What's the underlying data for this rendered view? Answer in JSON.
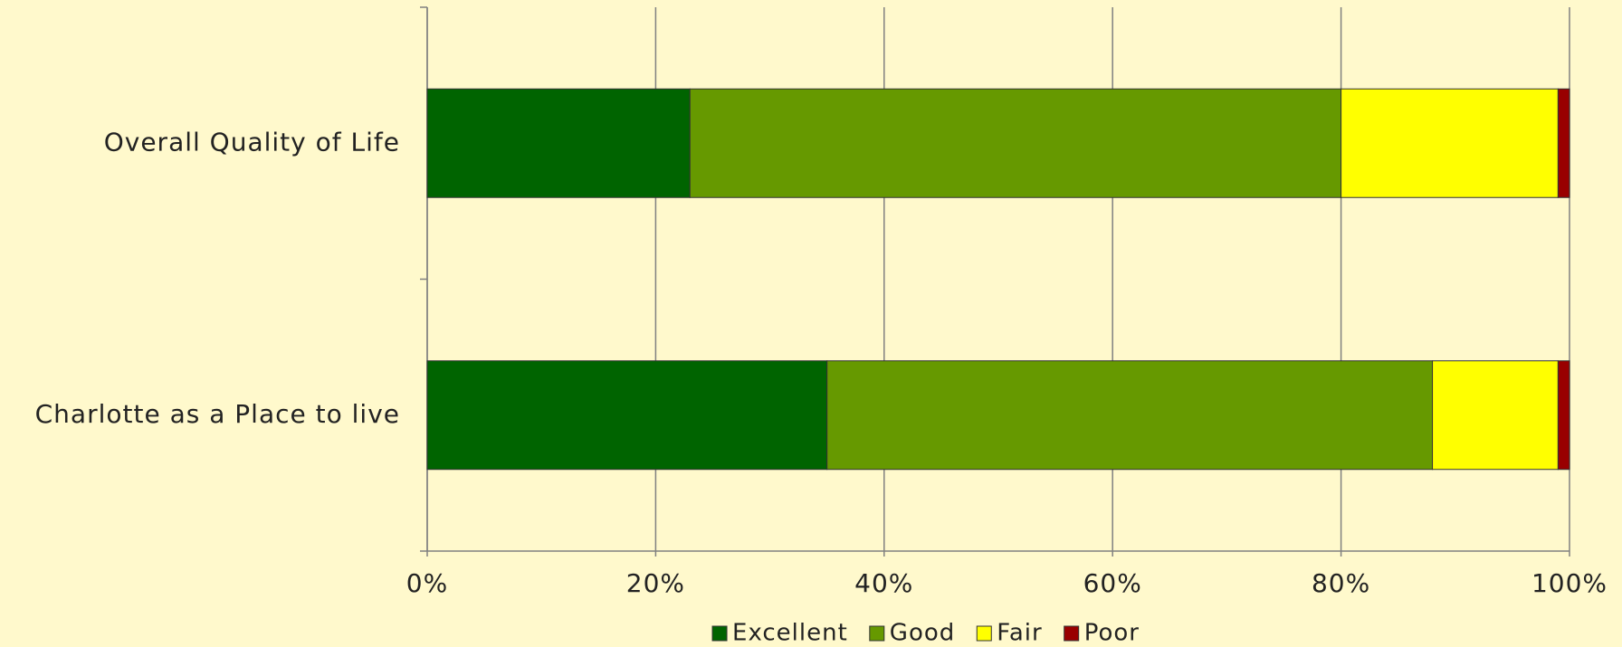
{
  "chart_data": {
    "type": "stacked_barh",
    "categories": [
      "Overall Quality of Life",
      "Charlotte as a Place to live"
    ],
    "series": [
      {
        "name": "Excellent",
        "color": "#006400",
        "values": [
          23,
          35
        ]
      },
      {
        "name": "Good",
        "color": "#669900",
        "values": [
          57,
          53
        ]
      },
      {
        "name": "Fair",
        "color": "#ffff00",
        "values": [
          19,
          11
        ]
      },
      {
        "name": "Poor",
        "color": "#990000",
        "values": [
          1,
          1
        ]
      }
    ],
    "xlim": [
      0,
      100
    ],
    "xticks": [
      {
        "value": 0,
        "label": "0%"
      },
      {
        "value": 20,
        "label": "20%"
      },
      {
        "value": 40,
        "label": "40%"
      },
      {
        "value": 60,
        "label": "60%"
      },
      {
        "value": 80,
        "label": "80%"
      },
      {
        "value": 100,
        "label": "100%"
      }
    ],
    "grid": true,
    "legend": "bottom"
  }
}
